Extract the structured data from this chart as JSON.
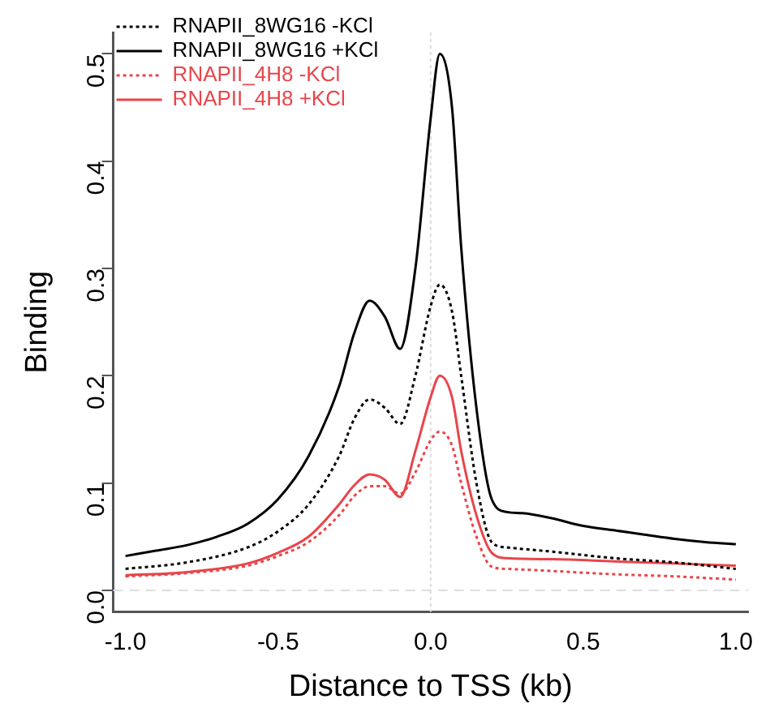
{
  "chart_data": {
    "type": "line",
    "xlabel": "Distance to TSS (kb)",
    "ylabel": "Binding",
    "xlim": [
      -1.04,
      1.04
    ],
    "xticks": [
      {
        "value": -1,
        "label": "-1.0"
      },
      {
        "value": -0.5,
        "label": "-0.5"
      },
      {
        "value": 0,
        "label": "0.0"
      },
      {
        "value": 0.5,
        "label": "0.5"
      },
      {
        "value": 1,
        "label": "1.0"
      }
    ],
    "ylim": [
      -0.02,
      0.52
    ],
    "yticks": [
      {
        "value": 0,
        "label": "0.0"
      },
      0.1,
      0.2,
      0.3,
      0.4,
      0.5
    ],
    "grid": false,
    "legend": "top left",
    "marker": "none",
    "ref_lines": [
      {
        "axis": "x",
        "value": 0,
        "color": "#dddddd",
        "line_style": "dotted"
      },
      {
        "axis": "y",
        "value": 0,
        "color": "#dddddd",
        "line_style": "dashed"
      }
    ],
    "series": [
      {
        "name": "RNAPII_8WG16 -KCl",
        "color": "#000000",
        "line_style": "dotted",
        "x": [
          -1,
          -0.8,
          -0.6,
          -0.5,
          -0.4,
          -0.3,
          -0.25,
          -0.2,
          -0.15,
          -0.1,
          -0.05,
          0,
          0.03,
          0.07,
          0.1,
          0.15,
          0.2,
          0.25,
          0.4,
          0.6,
          0.8,
          1
        ],
        "values": [
          0.02,
          0.026,
          0.04,
          0.055,
          0.08,
          0.125,
          0.16,
          0.178,
          0.17,
          0.155,
          0.2,
          0.265,
          0.285,
          0.26,
          0.2,
          0.1,
          0.045,
          0.04,
          0.036,
          0.03,
          0.026,
          0.02
        ]
      },
      {
        "name": "RNAPII_8WG16 +KCl",
        "color": "#000000",
        "line_style": "solid",
        "x": [
          -1,
          -0.9,
          -0.8,
          -0.7,
          -0.6,
          -0.5,
          -0.4,
          -0.3,
          -0.25,
          -0.2,
          -0.15,
          -0.1,
          -0.05,
          0,
          0.03,
          0.07,
          0.1,
          0.15,
          0.2,
          0.25,
          0.3,
          0.4,
          0.5,
          0.6,
          0.7,
          0.8,
          0.9,
          1
        ],
        "values": [
          0.032,
          0.037,
          0.042,
          0.05,
          0.062,
          0.085,
          0.125,
          0.19,
          0.24,
          0.27,
          0.255,
          0.225,
          0.3,
          0.44,
          0.5,
          0.45,
          0.32,
          0.17,
          0.085,
          0.073,
          0.072,
          0.067,
          0.06,
          0.056,
          0.052,
          0.048,
          0.045,
          0.043
        ]
      },
      {
        "name": "RNAPII_4H8 -KCl",
        "color": "#e8454a",
        "line_style": "dotted",
        "x": [
          -1,
          -0.8,
          -0.6,
          -0.5,
          -0.4,
          -0.3,
          -0.25,
          -0.2,
          -0.15,
          -0.1,
          -0.05,
          0,
          0.03,
          0.07,
          0.1,
          0.15,
          0.2,
          0.25,
          0.4,
          0.6,
          0.8,
          1
        ],
        "values": [
          0.013,
          0.016,
          0.023,
          0.032,
          0.045,
          0.07,
          0.088,
          0.097,
          0.097,
          0.09,
          0.11,
          0.14,
          0.148,
          0.135,
          0.1,
          0.05,
          0.022,
          0.02,
          0.018,
          0.015,
          0.013,
          0.01
        ]
      },
      {
        "name": "RNAPII_4H8 +KCl",
        "color": "#e8454a",
        "line_style": "solid",
        "x": [
          -1,
          -0.8,
          -0.6,
          -0.5,
          -0.4,
          -0.3,
          -0.25,
          -0.2,
          -0.15,
          -0.1,
          -0.05,
          0,
          0.03,
          0.07,
          0.1,
          0.15,
          0.2,
          0.25,
          0.4,
          0.6,
          0.8,
          1
        ],
        "values": [
          0.014,
          0.017,
          0.025,
          0.035,
          0.05,
          0.08,
          0.098,
          0.108,
          0.103,
          0.087,
          0.13,
          0.18,
          0.2,
          0.18,
          0.13,
          0.07,
          0.035,
          0.03,
          0.029,
          0.027,
          0.025,
          0.023
        ]
      }
    ]
  }
}
